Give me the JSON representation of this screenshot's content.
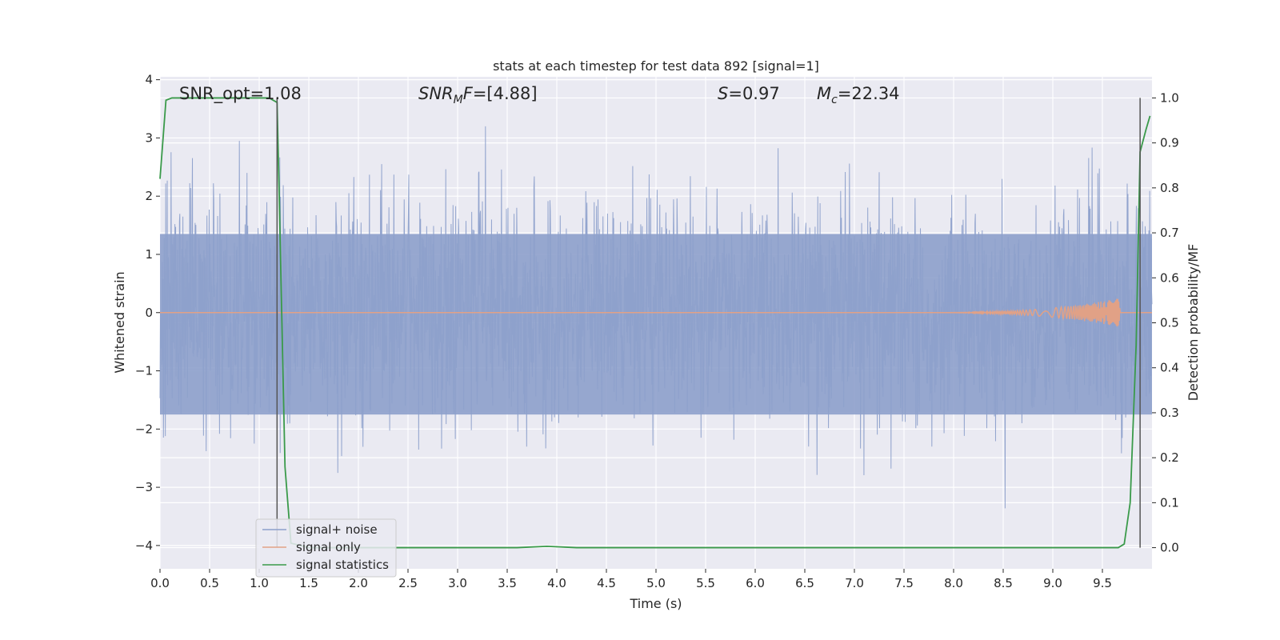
{
  "chart_data": {
    "type": "line",
    "title": "stats at each timestep for test data 892 [signal=1]",
    "xlabel": "Time (s)",
    "ylabel": "Whitened strain",
    "y2label": "Detection probability/MF",
    "xlim": [
      0,
      10
    ],
    "ylim": [
      -4.4,
      4.05
    ],
    "y2lim": [
      -0.047,
      1.047
    ],
    "xticks": [
      "0.0",
      "0.5",
      "1.0",
      "1.5",
      "2.0",
      "2.5",
      "3.0",
      "3.5",
      "4.0",
      "4.5",
      "5.0",
      "5.5",
      "6.0",
      "6.5",
      "7.0",
      "7.5",
      "8.0",
      "8.5",
      "9.0",
      "9.5"
    ],
    "yticks": [
      "−4",
      "−3",
      "−2",
      "−1",
      "0",
      "1",
      "2",
      "3",
      "4"
    ],
    "y2ticks": [
      "0.0",
      "0.1",
      "0.2",
      "0.3",
      "0.4",
      "0.5",
      "0.6",
      "0.7",
      "0.8",
      "0.9",
      "1.0"
    ],
    "grid": true,
    "legend_position": "lower-left",
    "colors": {
      "noise": "#8da0cb",
      "signal": "#e1a186",
      "stats": "#3a9a4a",
      "vline": "#555555",
      "background": "#eaeaf2"
    },
    "annotations": {
      "snr_opt": "SNR_opt=1.08",
      "snr_mf": "=[4.88]",
      "snr_mf_symbol": "SNR",
      "snr_mf_sub": "M",
      "snr_mf_f": "F",
      "s_symbol": "S",
      "s_value": "=0.97",
      "mc_symbol": "M",
      "mc_sub": "c",
      "mc_value": "=22.34"
    },
    "vlines_x": [
      1.18,
      9.88
    ],
    "series": [
      {
        "name": "signal+ noise",
        "noise_std": 0.95,
        "envelope_top": 1.35,
        "envelope_bottom": -1.75,
        "x_range": [
          0,
          10
        ]
      },
      {
        "name": "signal only",
        "chirp_start_x": 7.5,
        "chirp_end_x": 9.68,
        "chirp_peak_amplitude": 0.25
      },
      {
        "name": "signal statistics",
        "x": [
          0.0,
          0.06,
          0.12,
          0.2,
          0.4,
          0.6,
          0.8,
          1.0,
          1.1,
          1.18,
          1.2,
          1.26,
          1.32,
          1.5,
          2.0,
          3.0,
          3.6,
          3.9,
          4.2,
          5.0,
          7.0,
          9.0,
          9.6,
          9.66,
          9.72,
          9.78,
          9.84,
          9.88,
          9.94,
          9.98
        ],
        "y": [
          0.82,
          0.995,
          1.0,
          1.0,
          1.0,
          1.0,
          1.0,
          1.0,
          1.0,
          0.99,
          0.8,
          0.18,
          0.01,
          0.0,
          0.0,
          0.0,
          0.0,
          0.003,
          0.0,
          0.0,
          0.0,
          0.0,
          0.0,
          0.0,
          0.008,
          0.1,
          0.45,
          0.88,
          0.93,
          0.96
        ]
      }
    ]
  }
}
